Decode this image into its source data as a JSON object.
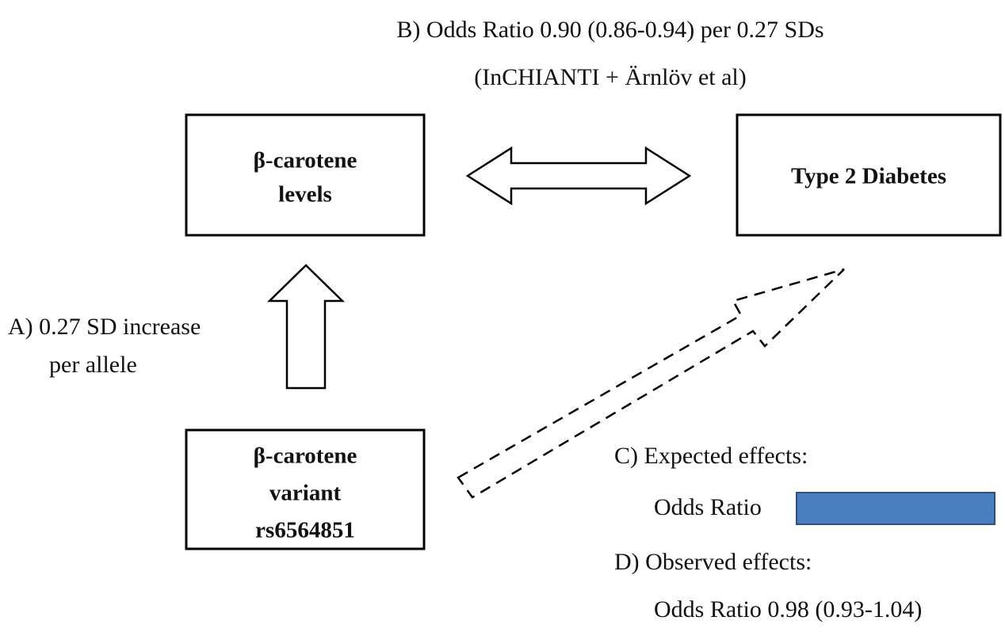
{
  "header": {
    "lines": [
      "B) Odds Ratio 0.90 (0.86-0.94) per 0.27 SDs",
      "(InCHIANTI + Ärnlöv et al)"
    ]
  },
  "nodes": [
    {
      "lines": [
        "β-carotene",
        "levels"
      ]
    },
    {
      "lines": [
        "Type 2 Diabetes"
      ]
    },
    {
      "lines": [
        "β-carotene",
        "variant",
        "rs6564851"
      ]
    }
  ],
  "annotation_a": {
    "lines": [
      "A) 0.27 SD increase",
      "per allele"
    ]
  },
  "expected": {
    "heading": "C) Expected effects:",
    "label": "Odds Ratio"
  },
  "observed": {
    "heading": "D) Observed effects:",
    "label": "Odds Ratio 0.98 (0.93-1.04)"
  }
}
